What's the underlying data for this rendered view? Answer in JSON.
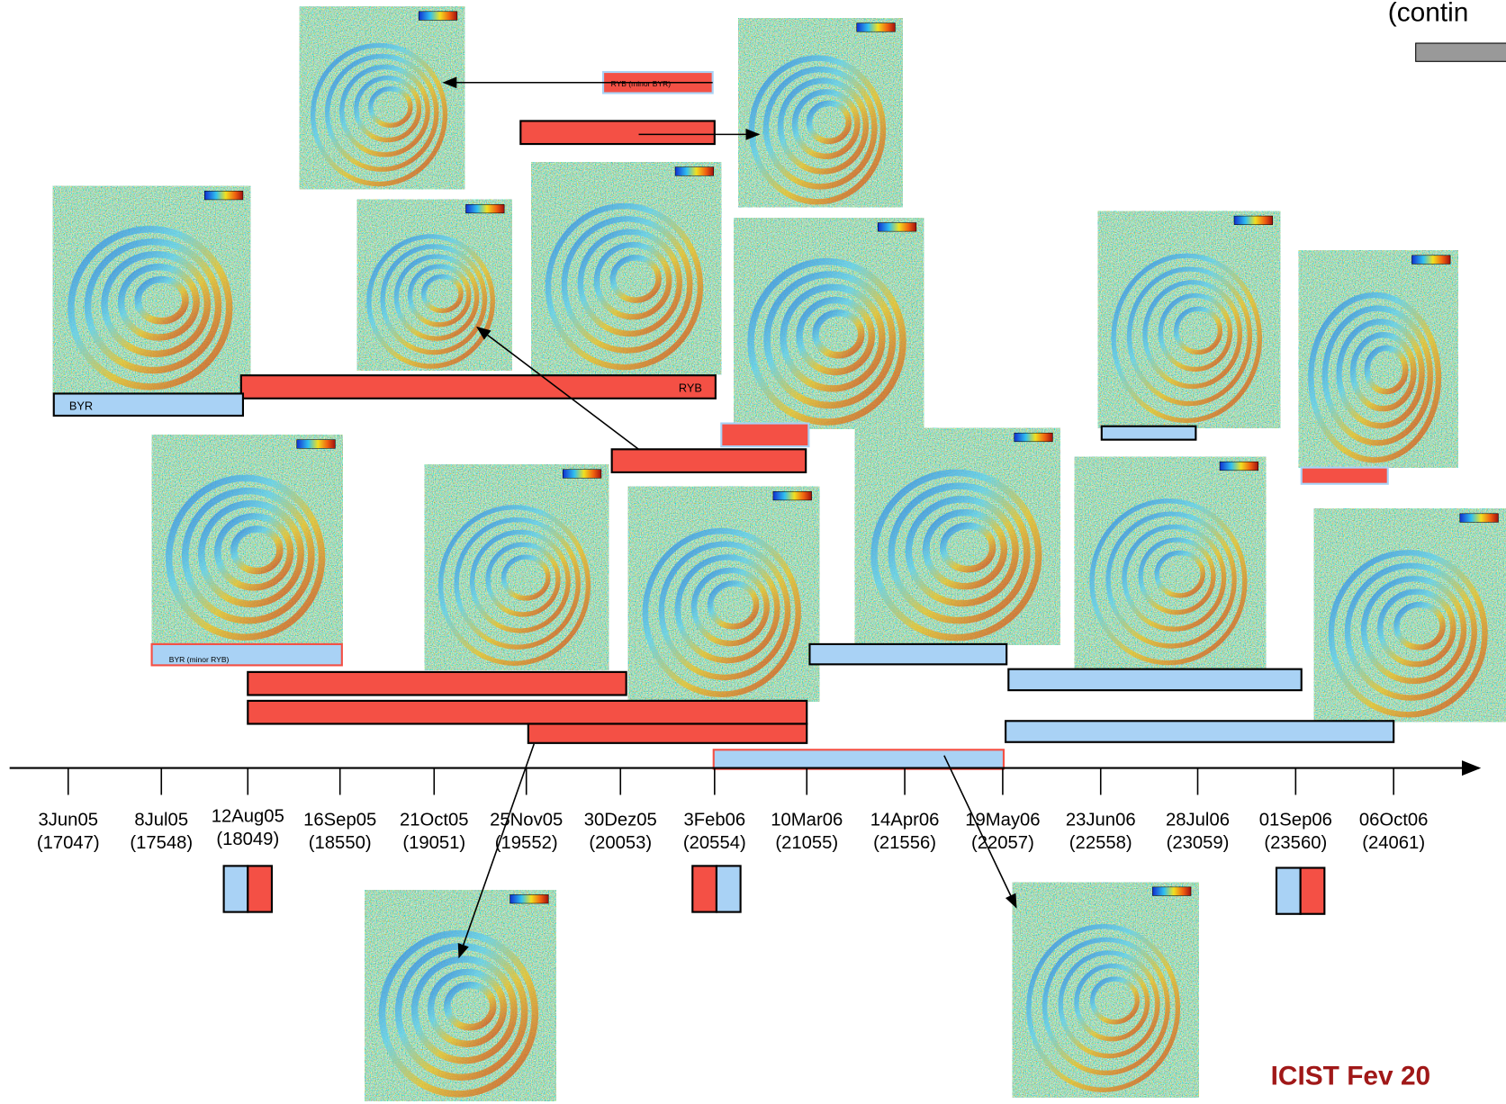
{
  "header": {
    "text": "(contin"
  },
  "bars": [
    {
      "label": "RYB (minor BYR)"
    },
    {
      "label": "RYB"
    },
    {
      "label": "BYR"
    },
    {
      "label": "BYR (minor RYB)"
    }
  ],
  "timeline": {
    "ticks": [
      {
        "date": "3Jun05",
        "orbit": "(17047)"
      },
      {
        "date": "8Jul05",
        "orbit": "(17548)"
      },
      {
        "date": "12Aug05",
        "orbit": "(18049)"
      },
      {
        "date": "16Sep05",
        "orbit": "(18550)"
      },
      {
        "date": "21Oct05",
        "orbit": "(19051)"
      },
      {
        "date": "25Nov05",
        "orbit": "(19552)"
      },
      {
        "date": "30Dez05",
        "orbit": "(20053)"
      },
      {
        "date": "3Feb06",
        "orbit": "(20554)"
      },
      {
        "date": "10Mar06",
        "orbit": "(21055)"
      },
      {
        "date": "14Apr06",
        "orbit": "(21556)"
      },
      {
        "date": "19May06",
        "orbit": "(22057)"
      },
      {
        "date": "23Jun06",
        "orbit": "(22558)"
      },
      {
        "date": "28Jul06",
        "orbit": "(23059)"
      },
      {
        "date": "01Sep06",
        "orbit": "(23560)"
      },
      {
        "date": "06Oct06",
        "orbit": "(24061)"
      }
    ]
  },
  "footer": {
    "text": "ICIST Fev 20"
  }
}
